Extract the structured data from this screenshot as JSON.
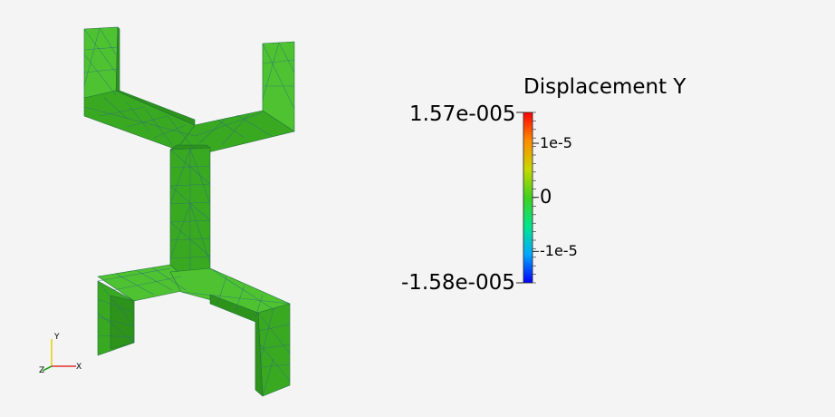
{
  "colorbar": {
    "title": "Displacement Y",
    "max_label": "1.57e-005",
    "min_label": "-1.58e-005",
    "range": [
      -1.58e-05,
      1.57e-05
    ],
    "ticks": [
      {
        "value": 1e-05,
        "label": "1e-5"
      },
      {
        "value": 0,
        "label": "0"
      },
      {
        "value": -1e-05,
        "label": "-1e-5"
      }
    ],
    "colormap": [
      "#0000ff",
      "#00a8ff",
      "#00e68c",
      "#3fd020",
      "#c8d800",
      "#ff8c00",
      "#ff0000"
    ]
  },
  "orientation_axes": {
    "x_label": "X",
    "y_label": "Y",
    "z_label": "Z",
    "x_color": "#e03030",
    "y_color": "#e0d020",
    "z_color": "#20a020"
  },
  "mesh": {
    "face_color": "#3ea825",
    "edge_color": "#2a6e7a"
  }
}
